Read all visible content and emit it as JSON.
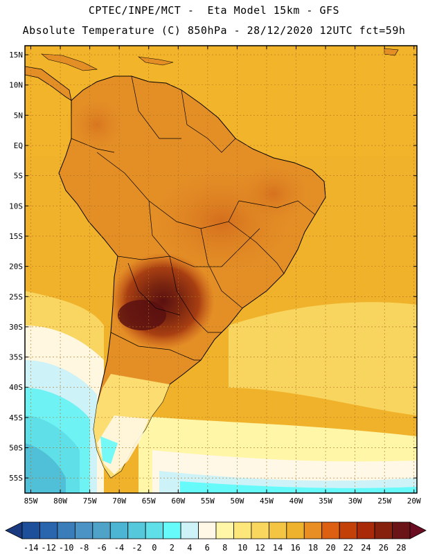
{
  "header": {
    "line1": "CPTEC/INPE/MCT -  Eta Model 15km - GFS",
    "line2": "Absolute Temperature (C) 850hPa - 28/12/2020 12UTC fct=59h"
  },
  "map": {
    "lat_range": [
      -57.5,
      16.5
    ],
    "lon_range": [
      -86.0,
      -19.5
    ],
    "lat_labels": [
      "15N",
      "10N",
      "5N",
      "EQ",
      "5S",
      "10S",
      "15S",
      "20S",
      "25S",
      "30S",
      "35S",
      "40S",
      "45S",
      "50S",
      "55S"
    ],
    "lat_values": [
      15,
      10,
      5,
      0,
      -5,
      -10,
      -15,
      -20,
      -25,
      -30,
      -35,
      -40,
      -45,
      -50,
      -55
    ],
    "lon_labels": [
      "85W",
      "80W",
      "75W",
      "70W",
      "65W",
      "60W",
      "55W",
      "50W",
      "45W",
      "40W",
      "35W",
      "30W",
      "25W",
      "20W"
    ],
    "lon_values": [
      -85,
      -80,
      -75,
      -70,
      -65,
      -60,
      -55,
      -50,
      -45,
      -40,
      -35,
      -30,
      -25,
      -20
    ],
    "ocean_color": "#f0b22a",
    "land_color": "#e48f26",
    "coast_color": "#000000",
    "grid_color": "#b07020"
  },
  "colorbar": {
    "labels": [
      "-14",
      "-12",
      "-10",
      "-8",
      "-6",
      "-4",
      "-2",
      "0",
      "2",
      "4",
      "6",
      "8",
      "10",
      "12",
      "14",
      "16",
      "18",
      "20",
      "22",
      "24",
      "26",
      "28"
    ],
    "colors": [
      "#1e4f9a",
      "#2a66ad",
      "#3a7db9",
      "#4a93c4",
      "#4fa3c8",
      "#4db5d4",
      "#55c8dc",
      "#5fdfe8",
      "#66fafa",
      "#cdf2f8",
      "#fff8e6",
      "#fff6a8",
      "#fde67a",
      "#f9d75e",
      "#f4c443",
      "#efb22c",
      "#e98e23",
      "#dd5f12",
      "#c34008",
      "#a82a08",
      "#86210d",
      "#6a1418"
    ],
    "left_end_color": "#1a3a80",
    "right_end_color": "#6a0c22"
  }
}
